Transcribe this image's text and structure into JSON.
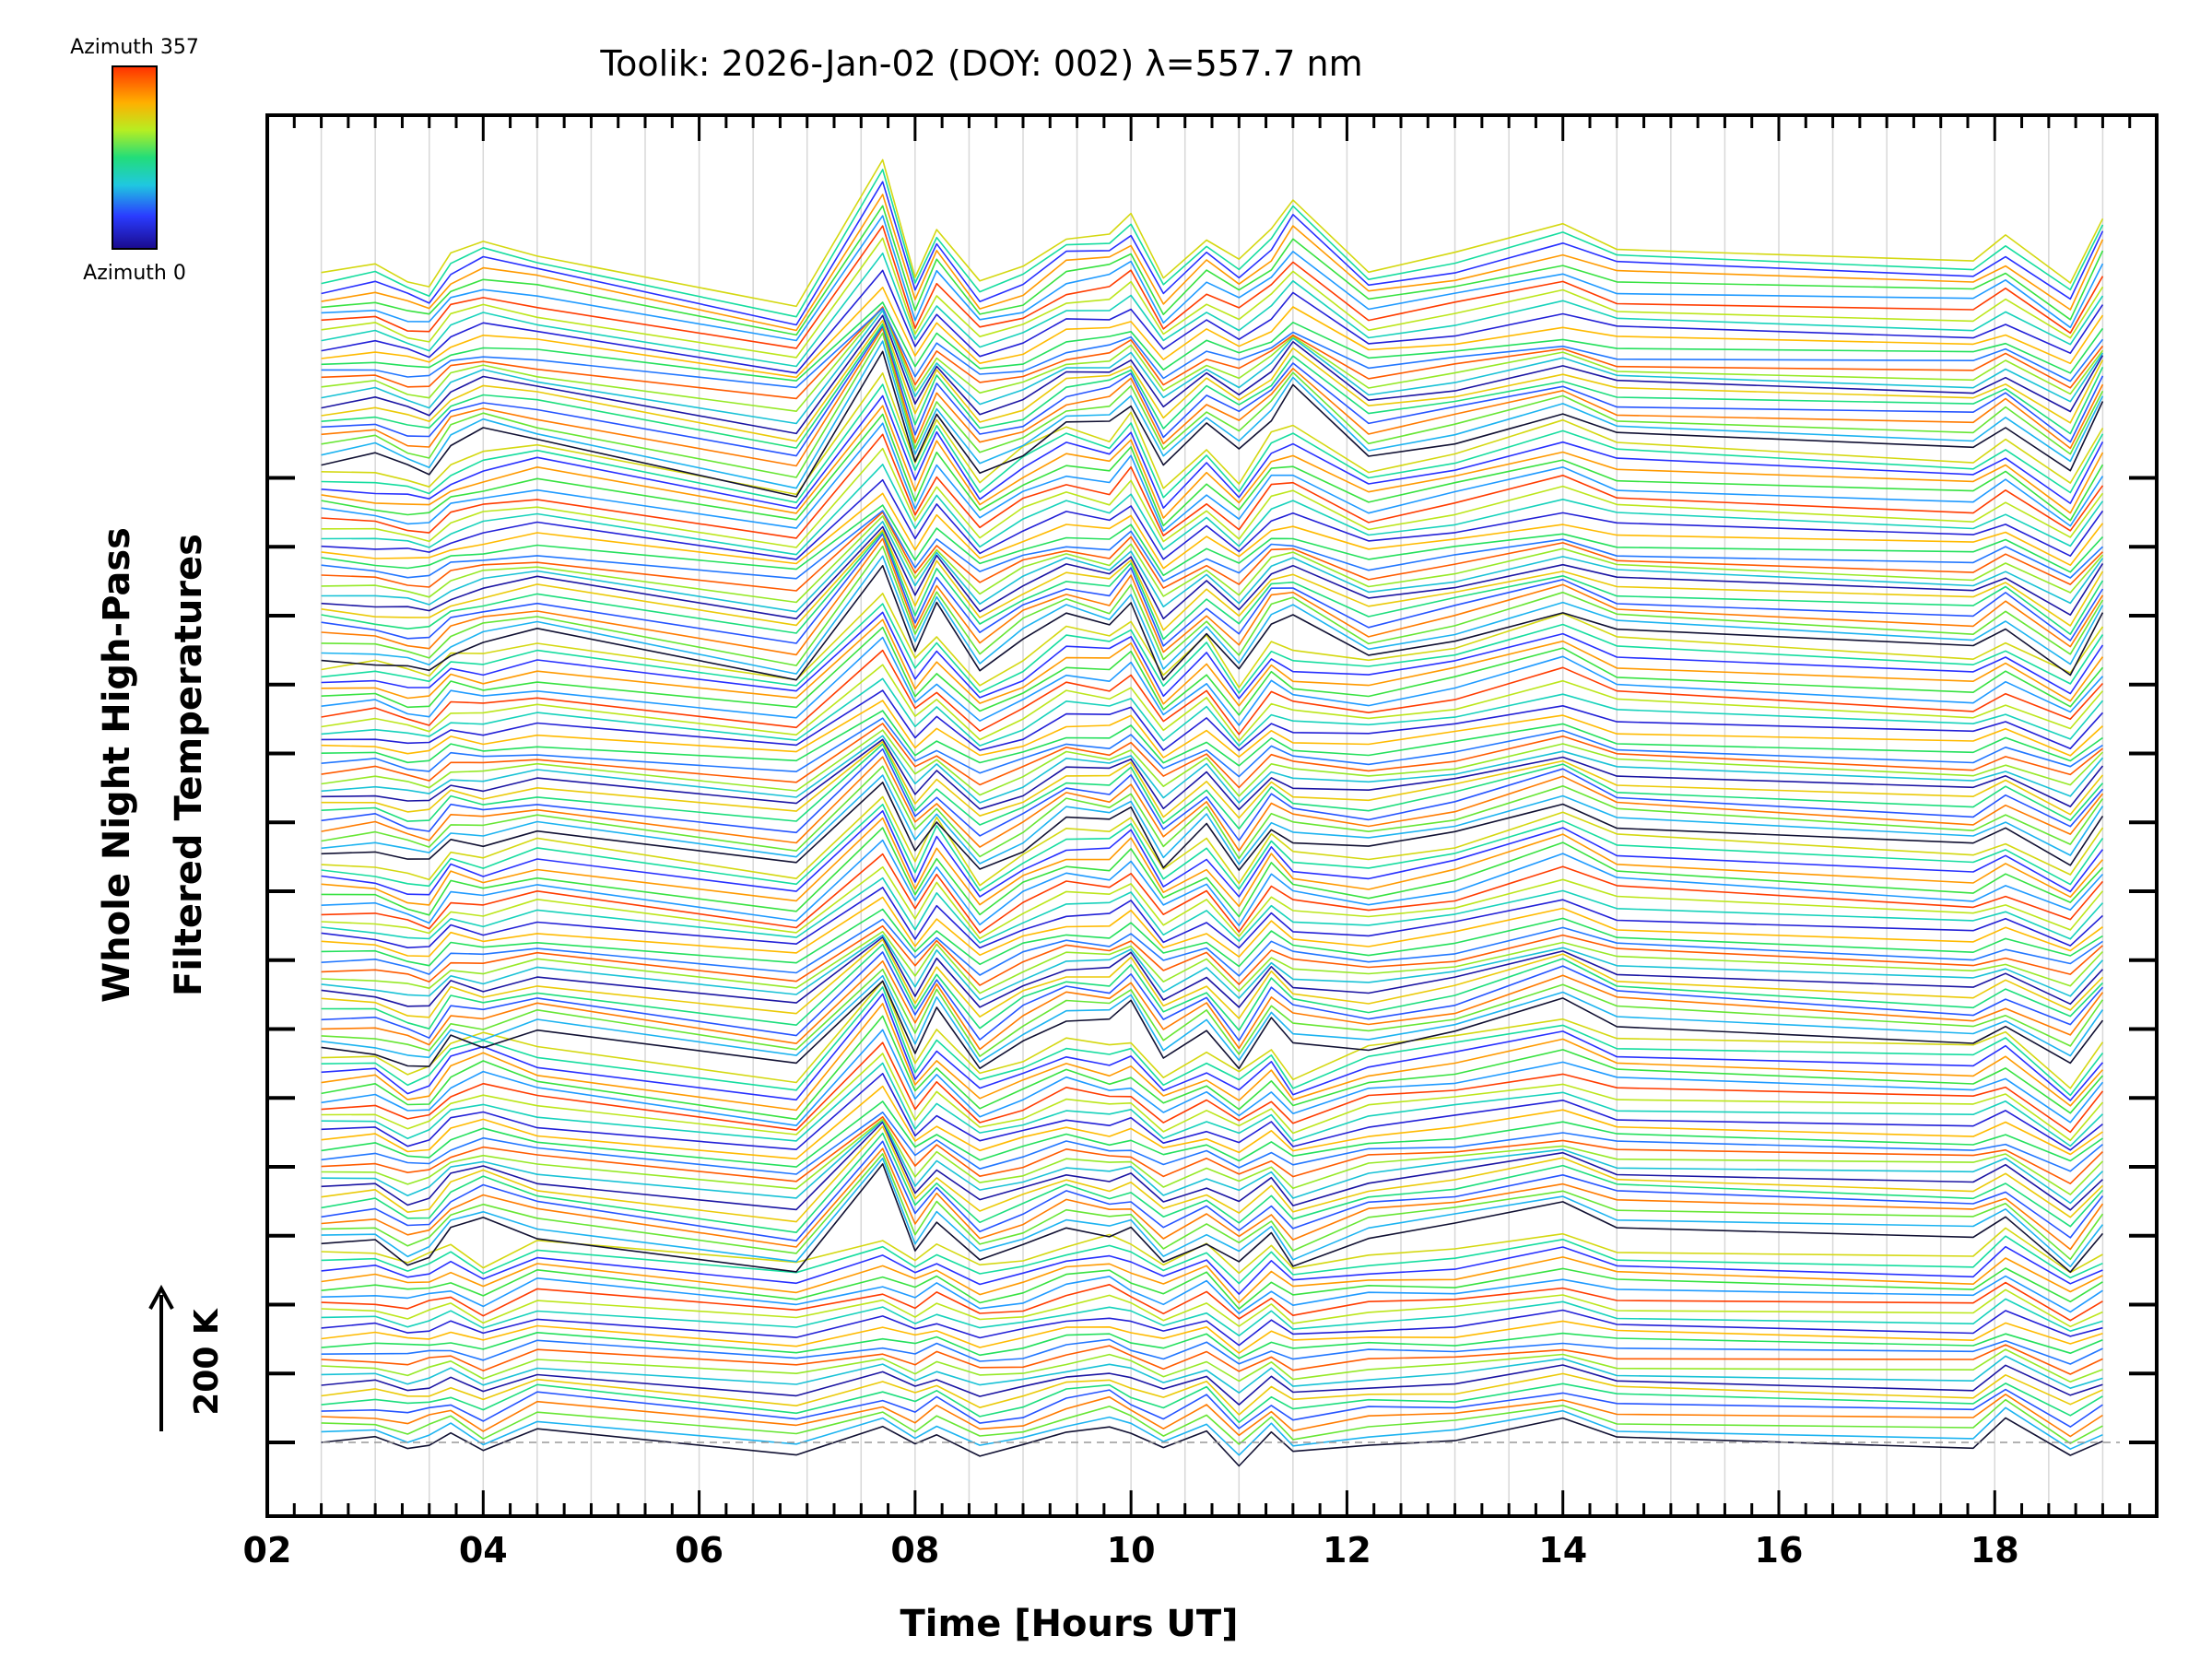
{
  "chart_data": {
    "type": "line",
    "title": "Toolik: 2026-Jan-02 (DOY: 002) λ=557.7 nm",
    "xlabel": "Time [Hours UT]",
    "ylabel_line1": "Whole Night High-Pass",
    "ylabel_line2": "Filtered Temperatures",
    "xlim": [
      2.0,
      19.5
    ],
    "x_ticks": [
      2,
      4,
      6,
      8,
      10,
      12,
      14,
      16,
      18
    ],
    "x_tick_labels": [
      "02",
      "04",
      "06",
      "08",
      "10",
      "12",
      "14",
      "16",
      "18"
    ],
    "y_offset_step_K": 100,
    "y_major_tick_count": 15,
    "scale_bar_label": "200 K",
    "colorbar": {
      "label_top": "Azimuth 357",
      "label_bottom": "Azimuth 0",
      "min": 0,
      "max": 357,
      "colormap": "rainbow (blue to red)"
    },
    "x": [
      2.5,
      3.0,
      3.3,
      3.5,
      3.7,
      4.0,
      4.5,
      6.9,
      7.7,
      8.0,
      8.2,
      8.6,
      9.0,
      9.4,
      9.8,
      10.0,
      10.3,
      10.7,
      11.0,
      11.3,
      11.5,
      12.2,
      13.0,
      14.0,
      14.5,
      17.8,
      18.1,
      18.7,
      19.0
    ],
    "series_groups": [
      {
        "group": 1,
        "base": [
          0,
          5,
          -10,
          0,
          15,
          -20,
          30,
          -20,
          25,
          -5,
          20,
          -25,
          -10,
          20,
          35,
          15,
          -15,
          25,
          -40,
          15,
          -20,
          0,
          5,
          40,
          10,
          -5,
          45,
          -30,
          5
        ]
      },
      {
        "group": 2,
        "base": [
          0,
          10,
          -30,
          -20,
          30,
          55,
          20,
          -50,
          150,
          -5,
          50,
          -30,
          0,
          40,
          20,
          30,
          -30,
          10,
          -30,
          20,
          -35,
          20,
          40,
          80,
          40,
          20,
          50,
          -50,
          30
        ]
      },
      {
        "group": 3,
        "base": [
          0,
          -5,
          -25,
          -35,
          25,
          10,
          40,
          -30,
          130,
          0,
          80,
          -40,
          20,
          60,
          55,
          90,
          -10,
          40,
          -40,
          60,
          20,
          0,
          30,
          100,
          50,
          10,
          40,
          -20,
          60
        ]
      },
      {
        "group": 4,
        "base": [
          0,
          10,
          -10,
          -15,
          30,
          20,
          40,
          -20,
          140,
          10,
          55,
          -30,
          10,
          70,
          60,
          90,
          -20,
          55,
          -35,
          50,
          25,
          10,
          40,
          100,
          50,
          15,
          50,
          -15,
          70
        ]
      },
      {
        "group": 5,
        "base": [
          0,
          -10,
          -20,
          -25,
          10,
          30,
          50,
          -40,
          180,
          10,
          100,
          -20,
          40,
          80,
          60,
          110,
          -40,
          40,
          -20,
          70,
          80,
          0,
          35,
          90,
          50,
          20,
          60,
          -30,
          80
        ]
      },
      {
        "group": 6,
        "base": [
          0,
          15,
          -10,
          -20,
          35,
          60,
          40,
          -60,
          210,
          -5,
          90,
          -15,
          10,
          70,
          80,
          110,
          -10,
          70,
          30,
          80,
          140,
          10,
          40,
          90,
          50,
          30,
          70,
          -20,
          110
        ]
      }
    ],
    "series_per_group": 24,
    "group_spacing_K": 370,
    "series_spacing_K": 15.4
  }
}
